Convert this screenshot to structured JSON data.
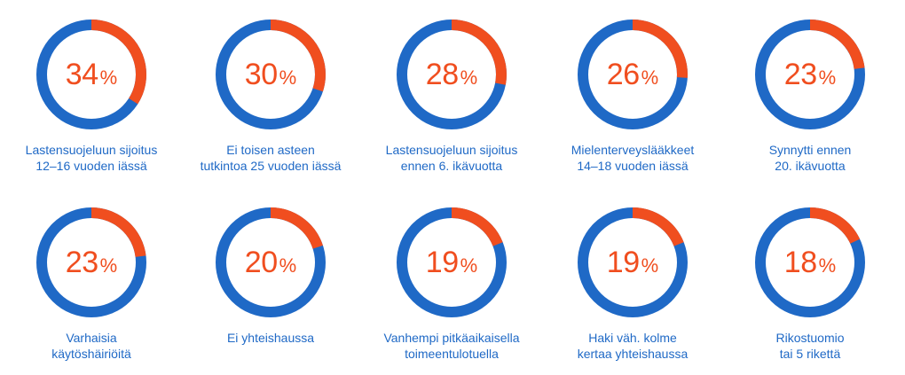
{
  "chart_data": {
    "type": "pie",
    "colors": {
      "highlight": "#f04e1f",
      "remainder": "#1f69c6"
    },
    "percent_sign": "%",
    "items": [
      {
        "value": 34,
        "label_lines": [
          "Lastensuojeluun sijoitus",
          "12–16 vuoden iässä"
        ]
      },
      {
        "value": 30,
        "label_lines": [
          "Ei toisen asteen",
          "tutkintoa 25 vuoden iässä"
        ]
      },
      {
        "value": 28,
        "label_lines": [
          "Lastensuojeluun sijoitus",
          "ennen 6. ikävuotta"
        ]
      },
      {
        "value": 26,
        "label_lines": [
          "Mielenterveyslääkkeet",
          "14–18 vuoden iässä"
        ]
      },
      {
        "value": 23,
        "label_lines": [
          "Synnytti ennen",
          "20. ikävuotta"
        ]
      },
      {
        "value": 23,
        "label_lines": [
          "Varhaisia",
          "käytöshäiriöitä"
        ]
      },
      {
        "value": 20,
        "label_lines": [
          "Ei yhteishaussa"
        ]
      },
      {
        "value": 19,
        "label_lines": [
          "Vanhempi pitkäaikaisella",
          "toimeentulotuella"
        ]
      },
      {
        "value": 19,
        "label_lines": [
          "Haki väh. kolme",
          "kertaa yhteishaussa"
        ]
      },
      {
        "value": 18,
        "label_lines": [
          "Rikostuomio",
          "tai 5 rikettä"
        ]
      }
    ]
  }
}
